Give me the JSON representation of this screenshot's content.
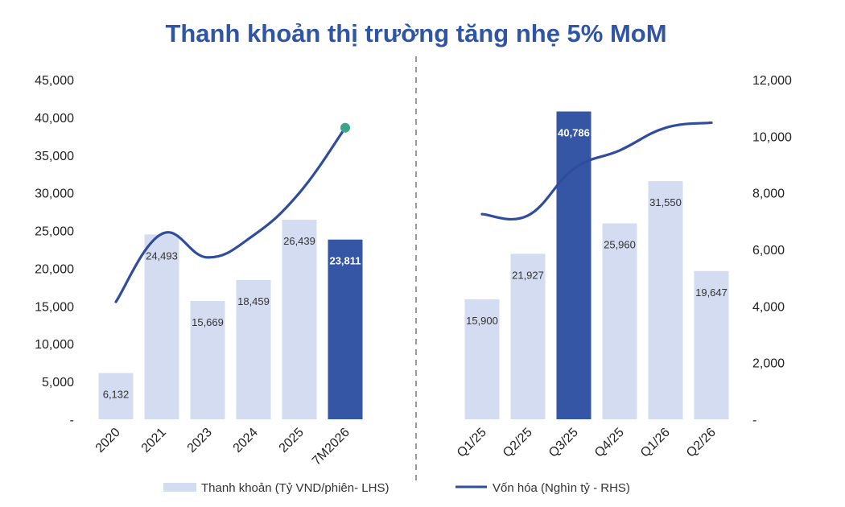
{
  "chart_data": {
    "type": "bar",
    "title": "Thanh khoản thị trường tăng nhẹ 5% MoM",
    "colors": {
      "bar": "#d4dcf1",
      "bar_highlight": "#3456a4",
      "line": "#2f4d9c",
      "marker": "#3aa58a",
      "title": "#2f55a4",
      "divider": "#999999"
    },
    "left_axis": {
      "ylim": [
        0,
        45000
      ],
      "ticks": [
        "-",
        "5,000",
        "10,000",
        "15,000",
        "20,000",
        "25,000",
        "30,000",
        "35,000",
        "40,000",
        "45,000"
      ]
    },
    "right_axis": {
      "ylim": [
        0,
        12000
      ],
      "ticks": [
        "-",
        "2,000",
        "4,000",
        "6,000",
        "8,000",
        "10,000",
        "12,000"
      ]
    },
    "panels": [
      {
        "categories": [
          "2020",
          "2021",
          "2023",
          "2024",
          "2025",
          "7M2026"
        ],
        "bar_values": [
          6132,
          24493,
          15669,
          18459,
          26439,
          23811
        ],
        "bar_labels": [
          "6,132",
          "24,493",
          "15,669",
          "18,459",
          "26,439",
          "23,811"
        ],
        "highlight_index": 5,
        "line_values": [
          4150,
          6550,
          5720,
          6500,
          8000,
          10300
        ],
        "end_marker": true
      },
      {
        "categories": [
          "Q1/25",
          "Q2/25",
          "Q3/25",
          "Q4/25",
          "Q1/26",
          "Q2/26"
        ],
        "bar_values": [
          15900,
          21927,
          40786,
          25960,
          31550,
          19647
        ],
        "bar_labels": [
          "15,900",
          "21,927",
          "40,786",
          "25,960",
          "31,550",
          "19,647"
        ],
        "highlight_index": 2,
        "line_values": [
          7250,
          7200,
          8850,
          9500,
          10300,
          10480
        ],
        "end_marker": false
      }
    ],
    "legend": [
      {
        "type": "bar",
        "label": "Thanh khoản (Tỷ VND/phiên- LHS)"
      },
      {
        "type": "line",
        "label": "Vốn hóa (Nghìn tỷ - RHS)"
      }
    ],
    "grid": false,
    "legend_position": "bottom"
  }
}
